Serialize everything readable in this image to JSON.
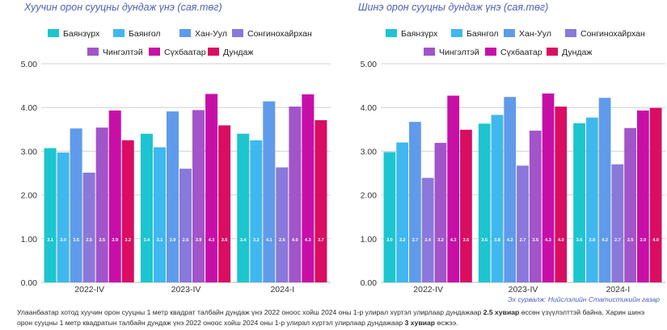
{
  "colors": {
    "title": "#4a63b5",
    "source": "#4a63b5",
    "axis_text": "#333333",
    "grid": "#d0d0d0",
    "label_on_bar": "#ffffff"
  },
  "chart_data": [
    {
      "type": "bar",
      "title": "Хуучин орон сууцны дундаж үнэ (сая.төг)",
      "categories": [
        "2022-IV",
        "2023-IV",
        "2024-I"
      ],
      "ylim": [
        0,
        5
      ],
      "yticks": [
        "0.00",
        "1.00",
        "2.00",
        "3.00",
        "4.00",
        "5.00"
      ],
      "grid": true,
      "legend_position": "top",
      "series": [
        {
          "name": "Баянзүрх",
          "color": "#1cc5cf",
          "values": [
            3.07,
            3.4,
            3.4
          ],
          "labels": [
            "3.1",
            "3.4",
            "3.4"
          ]
        },
        {
          "name": "Баянгол",
          "color": "#3fb8ef",
          "values": [
            2.97,
            3.09,
            3.25
          ],
          "labels": [
            "3.0",
            "3.1",
            "3.2"
          ]
        },
        {
          "name": "Хан-Уул",
          "color": "#5f9bea",
          "values": [
            3.52,
            3.91,
            4.14
          ],
          "labels": [
            "3.5",
            "3.9",
            "4.1"
          ]
        },
        {
          "name": "Сонгинохайрхан",
          "color": "#8a78db",
          "values": [
            2.51,
            2.6,
            2.63
          ],
          "labels": [
            "2.5",
            "2.6",
            "2.6"
          ]
        },
        {
          "name": "Чингэлтэй",
          "color": "#a254c9",
          "values": [
            3.54,
            3.94,
            4.02
          ],
          "labels": [
            "3.5",
            "3.9",
            "4.0"
          ]
        },
        {
          "name": "Сүхбаатар",
          "color": "#c70fa8",
          "values": [
            3.93,
            4.31,
            4.3
          ],
          "labels": [
            "3.9",
            "4.3",
            "4.3"
          ]
        },
        {
          "name": "Дундаж",
          "color": "#d90d62",
          "values": [
            3.25,
            3.59,
            3.71
          ],
          "labels": [
            "3.2",
            "3.6",
            "3.7"
          ]
        }
      ]
    },
    {
      "type": "bar",
      "title": "Шинэ орон сууцны дундаж үнэ (сая.төг)",
      "categories": [
        "2022-IV",
        "2023-IV",
        "2024-I"
      ],
      "ylim": [
        0,
        5
      ],
      "yticks": [
        "0.00",
        "1.00",
        "2.00",
        "3.00",
        "4.00",
        "5.00"
      ],
      "grid": true,
      "legend_position": "top",
      "series": [
        {
          "name": "Баянзүрх",
          "color": "#1cc5cf",
          "values": [
            2.98,
            3.63,
            3.64
          ],
          "labels": [
            "3.0",
            "3.6",
            "3.6"
          ]
        },
        {
          "name": "Баянгол",
          "color": "#3fb8ef",
          "values": [
            3.2,
            3.83,
            3.77
          ],
          "labels": [
            "3.2",
            "3.8",
            "3.8"
          ]
        },
        {
          "name": "Хан-Уул",
          "color": "#5f9bea",
          "values": [
            3.67,
            4.24,
            4.22
          ],
          "labels": [
            "3.7",
            "4.2",
            "4.2"
          ]
        },
        {
          "name": "Сонгинохайрхан",
          "color": "#8a78db",
          "values": [
            2.39,
            2.67,
            2.7
          ],
          "labels": [
            "2.4",
            "2.7",
            "2.7"
          ]
        },
        {
          "name": "Чингэлтэй",
          "color": "#a254c9",
          "values": [
            3.19,
            3.47,
            3.53
          ],
          "labels": [
            "3.2",
            "3.5",
            "3.5"
          ]
        },
        {
          "name": "Сүхбаатар",
          "color": "#c70fa8",
          "values": [
            4.27,
            4.32,
            3.93
          ],
          "labels": [
            "4.3",
            "4.3",
            "3.9"
          ]
        },
        {
          "name": "Дундаж",
          "color": "#d90d62",
          "values": [
            3.49,
            4.02,
            3.99
          ],
          "labels": [
            "3.5",
            "4.0",
            "4.0"
          ]
        }
      ]
    }
  ],
  "source": "Эх сурвалж: Нийслэлийн Статистикийн газар",
  "footnote": {
    "part1": "Улаанбаатар хотод хуучин орон сууцны 1 метр квадрат талбайн дундаж үнэ 2022 оноос хойш 2024 оны 1-р улирал хүртэл улирлаар дундажаар ",
    "bold1": "2.5 хувиар",
    "part2": " өссөн үзүүлэлттэй байна. Харин шинэ орон сууцны 1 метр квадратын талбайн дундаж үнэ 2022 оноос хойш 2024 оны 1-р улирал хүртэл улирлаар дундажаар ",
    "bold2": "3 хувиар",
    "part3": " өсжээ."
  }
}
